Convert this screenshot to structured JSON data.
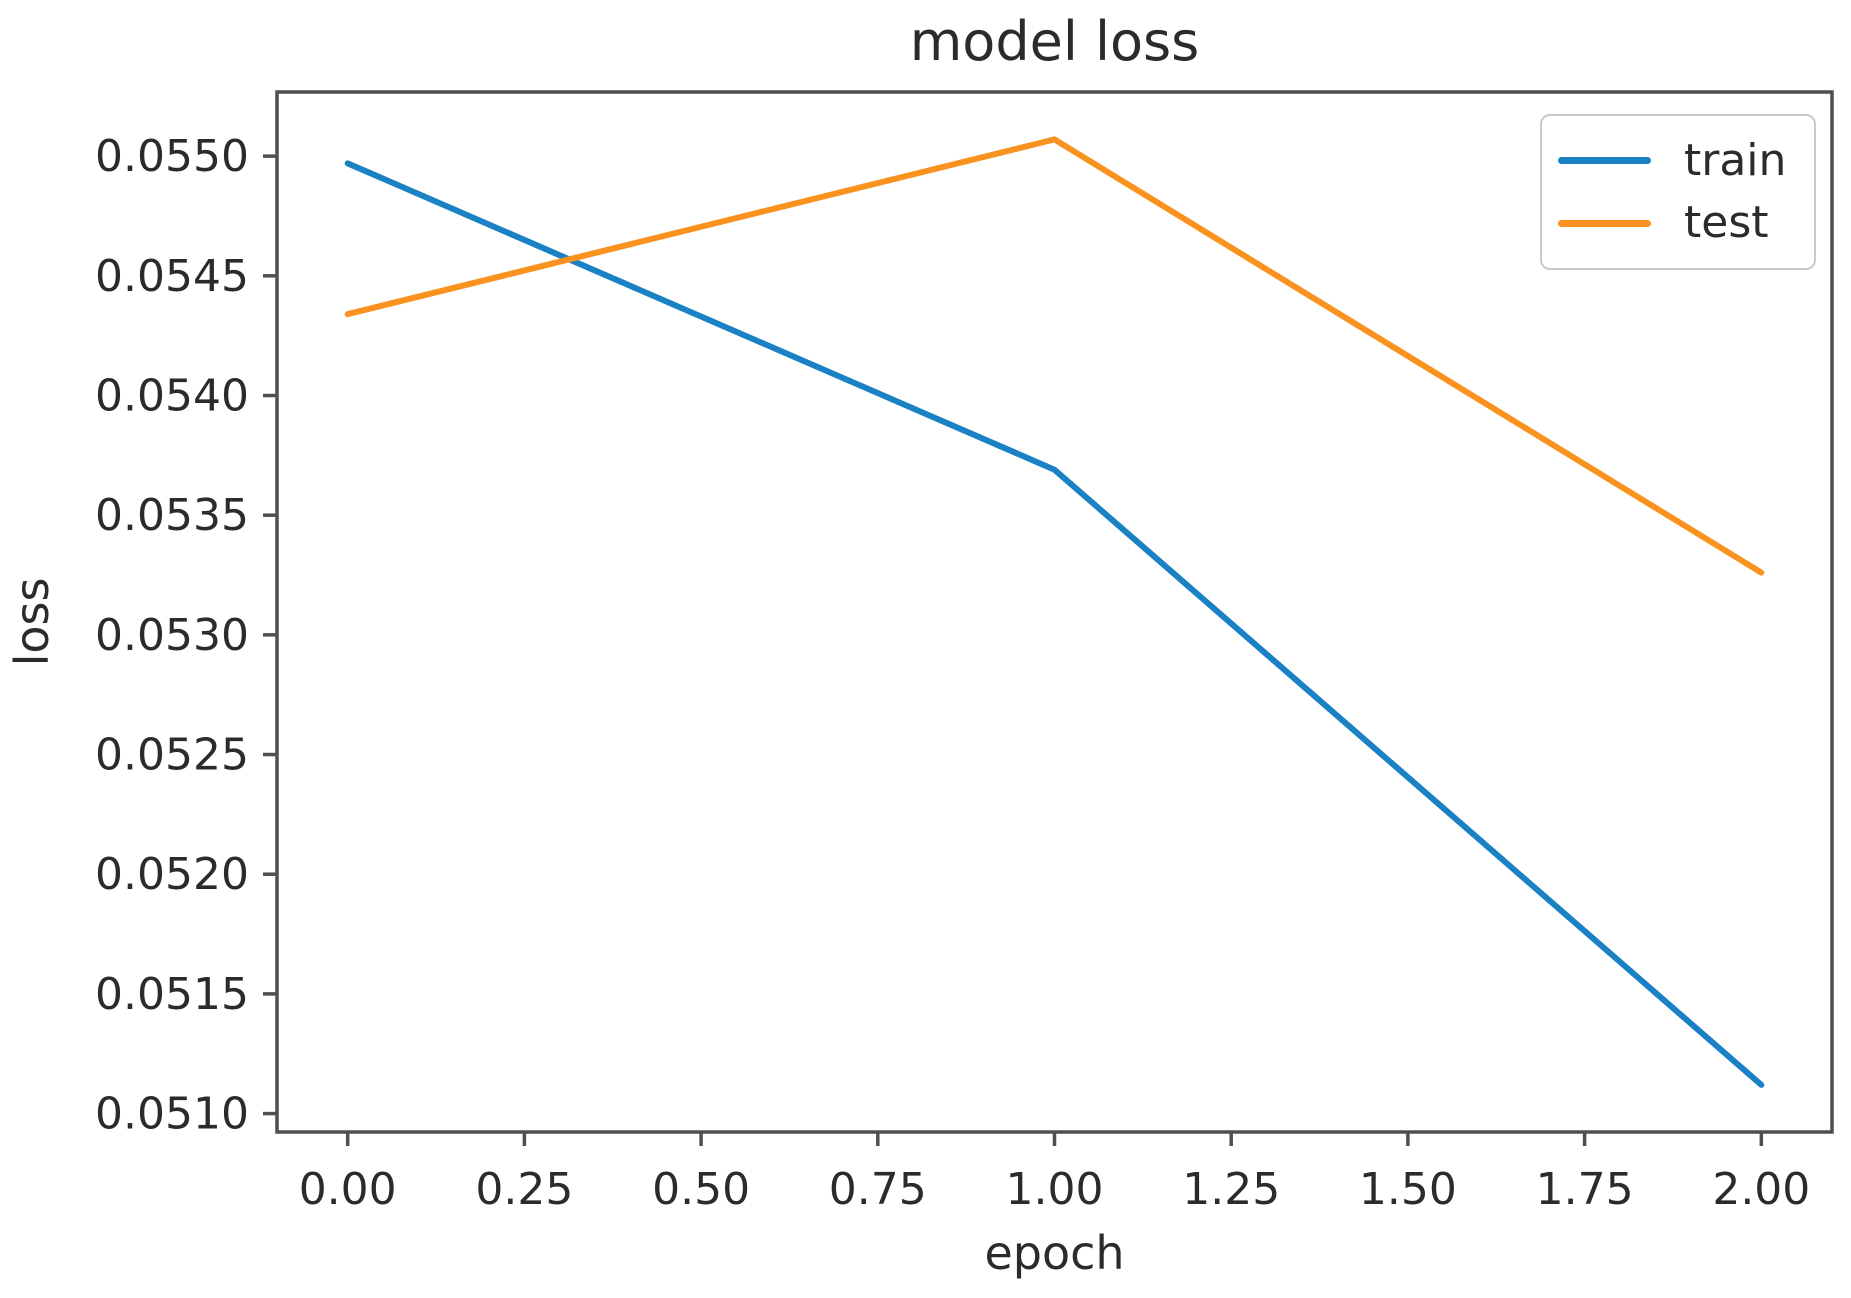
{
  "chart_data": {
    "type": "line",
    "title": "model loss",
    "xlabel": "epoch",
    "ylabel": "loss",
    "x": [
      0,
      1,
      2
    ],
    "series": [
      {
        "name": "train",
        "color": "#1a82c4",
        "values": [
          0.05497,
          0.05369,
          0.05112
        ]
      },
      {
        "name": "test",
        "color": "#f9921e",
        "values": [
          0.05434,
          0.05507,
          0.05326
        ]
      }
    ],
    "xlim": [
      -0.1,
      2.1
    ],
    "ylim": [
      0.050923,
      0.055268
    ],
    "xticks": [
      "0.00",
      "0.25",
      "0.50",
      "0.75",
      "1.00",
      "1.25",
      "1.50",
      "1.75",
      "2.00"
    ],
    "xtick_values": [
      0,
      0.25,
      0.5,
      0.75,
      1,
      1.25,
      1.5,
      1.75,
      2
    ],
    "yticks": [
      "0.0510",
      "0.0515",
      "0.0520",
      "0.0525",
      "0.0530",
      "0.0535",
      "0.0540",
      "0.0545",
      "0.0550"
    ],
    "ytick_values": [
      0.051,
      0.0515,
      0.052,
      0.0525,
      0.053,
      0.0535,
      0.054,
      0.0545,
      0.055
    ],
    "legend": {
      "entries": [
        "train",
        "test"
      ],
      "position": "upper right"
    },
    "grid": false,
    "frame_color": "#4f4f4f",
    "text_color": "#2b2b2b"
  }
}
